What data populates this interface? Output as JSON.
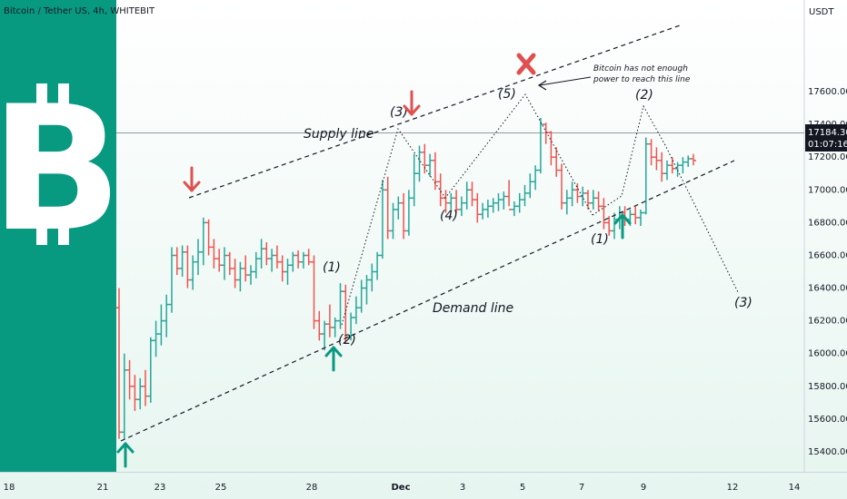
{
  "header": {
    "title": "Bitcoin / Tether US, 4h, WHITEBIT",
    "currency": "USDT"
  },
  "price_badge": {
    "price": "17184.30",
    "countdown": "01:07:16"
  },
  "colors": {
    "up": "#26a69a",
    "down": "#ef5350",
    "logo_bg": "#089981",
    "marker_red": "#e05050",
    "marker_green": "#089981",
    "bg_top": "#ffffff",
    "bg_bottom": "#e6f5ef"
  },
  "icons": {
    "logo": "bitcoin-logo-icon"
  },
  "annotations": {
    "supply_line": "Supply line",
    "demand_line": "Demand line",
    "note_line1": "Bitcoin has not enough",
    "note_line2": "power to reach this line",
    "waves": [
      "(3)",
      "(4)",
      "(5)",
      "(1)",
      "(2)",
      "(1)",
      "(2)",
      "(3)"
    ]
  },
  "chart_data": {
    "type": "candlestick",
    "title": "Bitcoin / Tether US, 4h, WHITEBIT",
    "ylabel": "USDT",
    "ylim": [
      15300,
      17850
    ],
    "x_ticks": [
      "18",
      "21",
      "23",
      "25",
      "28",
      "Dec",
      "3",
      "5",
      "7",
      "9",
      "12",
      "14"
    ],
    "y_ticks": [
      "15400.00",
      "15600.00",
      "15800.00",
      "16000.00",
      "16200.00",
      "16400.00",
      "16600.00",
      "16800.00",
      "17000.00",
      "17200.00",
      "17400.00",
      "17600.00"
    ],
    "last_price": 17184.3,
    "trend_lines": [
      {
        "name": "Supply line",
        "start": [
          "Nov 23",
          16810
        ],
        "end": [
          "Dec 10",
          17780
        ]
      },
      {
        "name": "Demand line",
        "start": [
          "Nov 21",
          15480
        ],
        "end": [
          "Dec 11",
          17020
        ]
      }
    ],
    "wave_labels": [
      {
        "label": "(3)",
        "x": "Nov 29 20:00",
        "y": 17290
      },
      {
        "label": "(4)",
        "x": "Dec 2 16:00",
        "y": 16730
      },
      {
        "label": "(5)",
        "x": "Dec 5",
        "y": 17390
      },
      {
        "label": "(1)",
        "x": "Nov 28",
        "y": 16430
      },
      {
        "label": "(2)",
        "x": "Nov 28 20:00",
        "y": 15930
      },
      {
        "label": "(1)",
        "x": "Dec 7 12:00",
        "y": 16560
      },
      {
        "label": "(2)",
        "x": "Dec 9",
        "y": 17380
      },
      {
        "label": "(3)",
        "x": "Dec 12",
        "y": 16230
      }
    ],
    "candles": [
      [
        16280,
        16400,
        15480,
        15520
      ],
      [
        15520,
        16000,
        15480,
        15900
      ],
      [
        15900,
        15960,
        15720,
        15800
      ],
      [
        15800,
        15870,
        15650,
        15720
      ],
      [
        15720,
        15850,
        15660,
        15800
      ],
      [
        15800,
        15900,
        15680,
        15740
      ],
      [
        15740,
        16100,
        15700,
        16080
      ],
      [
        16080,
        16200,
        15980,
        16120
      ],
      [
        16120,
        16300,
        16050,
        16200
      ],
      [
        16200,
        16360,
        16100,
        16300
      ],
      [
        16300,
        16650,
        16250,
        16600
      ],
      [
        16600,
        16650,
        16480,
        16520
      ],
      [
        16520,
        16660,
        16470,
        16620
      ],
      [
        16620,
        16660,
        16400,
        16450
      ],
      [
        16450,
        16600,
        16390,
        16560
      ],
      [
        16560,
        16700,
        16480,
        16620
      ],
      [
        16620,
        16830,
        16540,
        16800
      ],
      [
        16800,
        16820,
        16600,
        16650
      ],
      [
        16650,
        16700,
        16520,
        16580
      ],
      [
        16580,
        16640,
        16500,
        16540
      ],
      [
        16540,
        16650,
        16450,
        16600
      ],
      [
        16600,
        16620,
        16480,
        16520
      ],
      [
        16520,
        16580,
        16400,
        16450
      ],
      [
        16450,
        16560,
        16380,
        16520
      ],
      [
        16520,
        16600,
        16440,
        16480
      ],
      [
        16480,
        16540,
        16420,
        16500
      ],
      [
        16500,
        16620,
        16460,
        16580
      ],
      [
        16580,
        16700,
        16520,
        16640
      ],
      [
        16640,
        16680,
        16540,
        16580
      ],
      [
        16580,
        16640,
        16500,
        16600
      ],
      [
        16600,
        16660,
        16520,
        16560
      ],
      [
        16560,
        16600,
        16440,
        16500
      ],
      [
        16500,
        16580,
        16420,
        16540
      ],
      [
        16540,
        16620,
        16500,
        16600
      ],
      [
        16600,
        16630,
        16520,
        16560
      ],
      [
        16560,
        16620,
        16520,
        16600
      ],
      [
        16600,
        16640,
        16540,
        16560
      ],
      [
        16560,
        16600,
        16150,
        16200
      ],
      [
        16200,
        16260,
        16080,
        16120
      ],
      [
        16120,
        16200,
        16020,
        16180
      ],
      [
        16180,
        16300,
        16100,
        16160
      ],
      [
        16160,
        16220,
        16100,
        16200
      ],
      [
        16200,
        16430,
        16150,
        16380
      ],
      [
        16380,
        16420,
        16060,
        16100
      ],
      [
        16100,
        16250,
        16080,
        16220
      ],
      [
        16220,
        16350,
        16180,
        16280
      ],
      [
        16280,
        16450,
        16250,
        16400
      ],
      [
        16400,
        16480,
        16300,
        16450
      ],
      [
        16450,
        16550,
        16380,
        16500
      ],
      [
        16500,
        16620,
        16450,
        16600
      ],
      [
        16600,
        17060,
        16580,
        17000
      ],
      [
        17000,
        17080,
        16700,
        16750
      ],
      [
        16750,
        16920,
        16700,
        16880
      ],
      [
        16880,
        16960,
        16820,
        16920
      ],
      [
        16920,
        16980,
        16700,
        16750
      ],
      [
        16750,
        17000,
        16720,
        16950
      ],
      [
        16950,
        17220,
        16900,
        17100
      ],
      [
        17100,
        17270,
        17050,
        17230
      ],
      [
        17230,
        17280,
        17100,
        17150
      ],
      [
        17150,
        17220,
        17080,
        17180
      ],
      [
        17180,
        17230,
        17000,
        17050
      ],
      [
        17050,
        17100,
        16900,
        16950
      ],
      [
        16950,
        17000,
        16860,
        16920
      ],
      [
        16920,
        16980,
        16880,
        16950
      ],
      [
        16950,
        17000,
        16860,
        16880
      ],
      [
        16880,
        16960,
        16840,
        16920
      ],
      [
        16920,
        17050,
        16880,
        17000
      ],
      [
        17000,
        17050,
        16900,
        16940
      ],
      [
        16940,
        16980,
        16800,
        16850
      ],
      [
        16850,
        16920,
        16820,
        16880
      ],
      [
        16880,
        16940,
        16830,
        16900
      ],
      [
        16900,
        16950,
        16860,
        16920
      ],
      [
        16920,
        16980,
        16870,
        16940
      ],
      [
        16940,
        16990,
        16880,
        16960
      ],
      [
        16960,
        17060,
        16900,
        16880
      ],
      [
        16880,
        16930,
        16840,
        16900
      ],
      [
        16900,
        16980,
        16860,
        16940
      ],
      [
        16940,
        17030,
        16900,
        16980
      ],
      [
        16980,
        17100,
        16950,
        17050
      ],
      [
        17050,
        17150,
        17000,
        17120
      ],
      [
        17120,
        17440,
        17100,
        17400
      ],
      [
        17400,
        17410,
        17280,
        17350
      ],
      [
        17350,
        17360,
        17150,
        17200
      ],
      [
        17200,
        17260,
        17080,
        17120
      ],
      [
        17120,
        17160,
        16880,
        16920
      ],
      [
        16920,
        17000,
        16850,
        16950
      ],
      [
        16950,
        17050,
        16900,
        17000
      ],
      [
        17000,
        17040,
        16920,
        16960
      ],
      [
        16960,
        17020,
        16900,
        16980
      ],
      [
        16980,
        17000,
        16880,
        16920
      ],
      [
        16920,
        17000,
        16880,
        16950
      ],
      [
        16950,
        16990,
        16870,
        16900
      ],
      [
        16900,
        16950,
        16760,
        16800
      ],
      [
        16800,
        16840,
        16720,
        16750
      ],
      [
        16750,
        16860,
        16700,
        16820
      ],
      [
        16820,
        16900,
        16760,
        16860
      ],
      [
        16860,
        16900,
        16780,
        16820
      ],
      [
        16820,
        16880,
        16780,
        16850
      ],
      [
        16850,
        16900,
        16790,
        16830
      ],
      [
        16830,
        16880,
        16780,
        16860
      ],
      [
        16860,
        17320,
        16850,
        17280
      ],
      [
        17280,
        17310,
        17150,
        17200
      ],
      [
        17200,
        17260,
        17120,
        17180
      ],
      [
        17180,
        17230,
        17050,
        17100
      ],
      [
        17100,
        17180,
        17060,
        17150
      ],
      [
        17150,
        17200,
        17100,
        17130
      ],
      [
        17130,
        17170,
        17080,
        17150
      ],
      [
        17150,
        17200,
        17100,
        17170
      ],
      [
        17170,
        17210,
        17140,
        17190
      ],
      [
        17190,
        17220,
        17150,
        17180
      ]
    ]
  }
}
